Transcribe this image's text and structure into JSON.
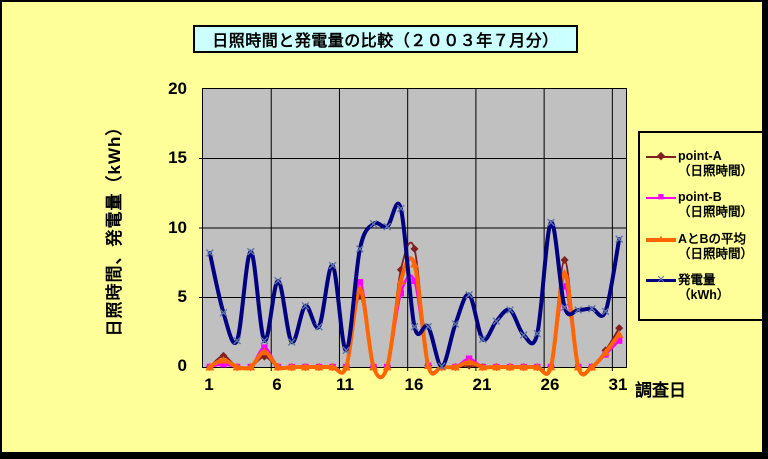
{
  "chart": {
    "title": "日照時間と発電量の比較（２００３年７月分）",
    "colors": {
      "page_background": "#FFFF99",
      "title_background": "#CCFFFF",
      "plot_background": "#C0C0C0",
      "grid": "#000000",
      "point_a": "#802020",
      "point_b": "#FF00FF",
      "average": "#FF6600",
      "hatsuden_line": "#000080",
      "hatsuden_marker": "#5F74A8"
    },
    "y_axis": {
      "title": "日照時間、発電量（kWh）",
      "tick_labels": [
        "20",
        "15",
        "10",
        "5",
        "0"
      ]
    },
    "x_axis": {
      "title": "調査日",
      "tick_labels": [
        "1",
        "6",
        "11",
        "16",
        "21",
        "26",
        "31"
      ]
    },
    "legend": {
      "items": [
        {
          "label": "point-A",
          "sublabel": "（日照時間）",
          "marker": "diamond",
          "color": "#802020"
        },
        {
          "label": "point-B",
          "sublabel": "（日照時間）",
          "marker": "square",
          "color": "#FF00FF"
        },
        {
          "label": "AとBの平均",
          "sublabel": "（日照時間）",
          "marker": "triangle",
          "color": "#FF6600"
        },
        {
          "label": "発電量",
          "sublabel": "（kWh）",
          "marker": "x",
          "color": "#000080"
        }
      ]
    }
  },
  "chart_data": {
    "type": "line",
    "smoothed": true,
    "title": "日照時間と発電量の比較（２００３年７月分）",
    "xlabel": "調査日",
    "ylabel": "日照時間、発電量（kWh）",
    "x": [
      1,
      2,
      3,
      4,
      5,
      6,
      7,
      8,
      9,
      10,
      11,
      12,
      13,
      14,
      15,
      16,
      17,
      18,
      19,
      20,
      21,
      22,
      23,
      24,
      25,
      26,
      27,
      28,
      29,
      30,
      31
    ],
    "xlim": [
      1,
      31
    ],
    "ylim": [
      0,
      20
    ],
    "y_ticks": [
      0,
      5,
      10,
      15,
      20
    ],
    "x_ticks": [
      1,
      6,
      11,
      16,
      21,
      26,
      31
    ],
    "grid": true,
    "legend_position": "right",
    "series": [
      {
        "name": "point-A（日照時間）",
        "color": "#802020",
        "marker": "diamond",
        "width": 1.8,
        "values": [
          0,
          0.8,
          0,
          0,
          0.75,
          0,
          0,
          0,
          0,
          0,
          0,
          5.1,
          0,
          0,
          7.0,
          8.5,
          0.1,
          0,
          0,
          0.1,
          0,
          0,
          0,
          0,
          0,
          0,
          7.7,
          0,
          0,
          1.2,
          2.8
        ]
      },
      {
        "name": "point-B（日照時間）",
        "color": "#FF00FF",
        "marker": "square",
        "width": 2.5,
        "values": [
          0,
          0.2,
          0,
          0,
          1.4,
          0,
          0,
          0,
          0,
          0,
          0,
          6.1,
          0,
          0,
          5.3,
          6.2,
          0.1,
          0,
          0,
          0.6,
          0,
          0,
          0,
          0,
          0,
          0,
          5.8,
          0,
          0,
          0.9,
          1.9
        ]
      },
      {
        "name": "AとBの平均（日照時間）",
        "color": "#FF6600",
        "marker": "triangle",
        "width": 4,
        "values": [
          0,
          0.5,
          0,
          0,
          1.1,
          0,
          0,
          0,
          0,
          0,
          0,
          5.6,
          0,
          0,
          6.2,
          7.4,
          0.1,
          0,
          0,
          0.35,
          0,
          0,
          0,
          0,
          0,
          0,
          6.75,
          0,
          0,
          1.05,
          2.35
        ]
      },
      {
        "name": "発電量（kWh）",
        "color": "#000080",
        "marker": "x",
        "marker_color": "#5F74A8",
        "width": 4,
        "values": [
          8.2,
          3.9,
          1.9,
          8.3,
          1.9,
          6.2,
          1.8,
          4.4,
          2.9,
          7.3,
          1.2,
          8.5,
          10.3,
          10.1,
          11.4,
          2.9,
          2.9,
          0.05,
          3.1,
          5.2,
          2.0,
          3.3,
          4.1,
          2.3,
          2.4,
          10.4,
          4.3,
          4.1,
          4.2,
          4.0,
          9.2
        ]
      }
    ]
  }
}
